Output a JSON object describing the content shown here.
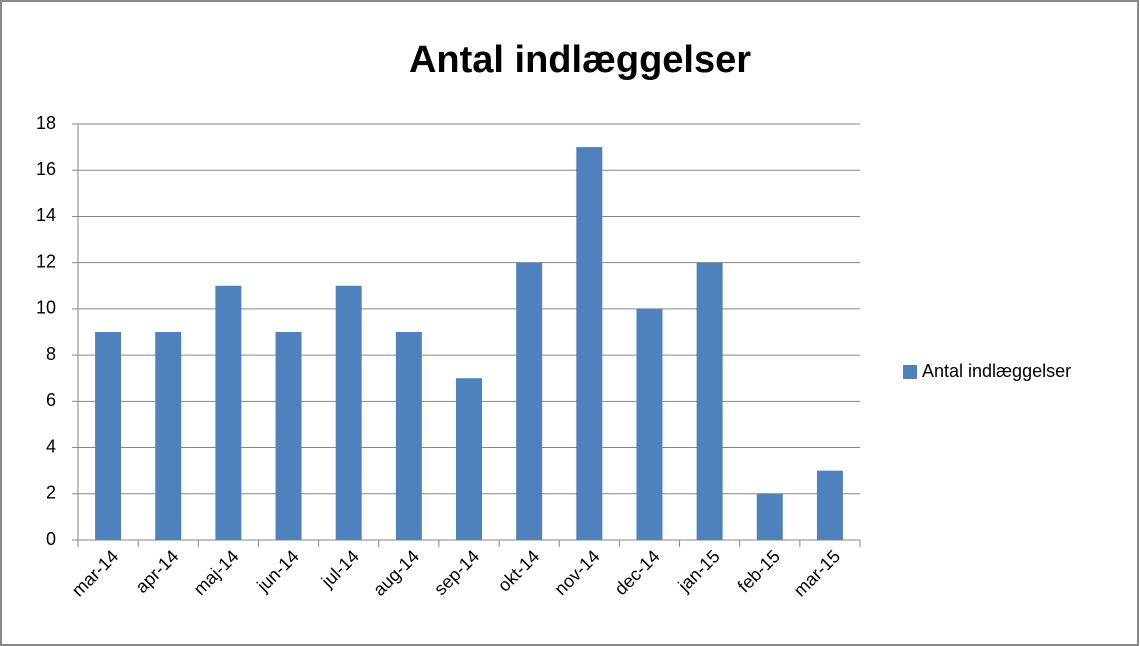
{
  "chart_data": {
    "type": "bar",
    "title": "Antal indlæggelser",
    "categories": [
      "mar-14",
      "apr-14",
      "maj-14",
      "jun-14",
      "jul-14",
      "aug-14",
      "sep-14",
      "okt-14",
      "nov-14",
      "dec-14",
      "jan-15",
      "feb-15",
      "mar-15"
    ],
    "series": [
      {
        "name": "Antal indlæggelser",
        "color": "#4f81bd",
        "values": [
          9,
          9,
          11,
          9,
          11,
          9,
          7,
          12,
          17,
          10,
          12,
          2,
          3
        ]
      }
    ],
    "ylim": [
      0,
      18
    ],
    "yticks": [
      0,
      2,
      4,
      6,
      8,
      10,
      12,
      14,
      16,
      18
    ],
    "grid": true,
    "legend": "right"
  }
}
